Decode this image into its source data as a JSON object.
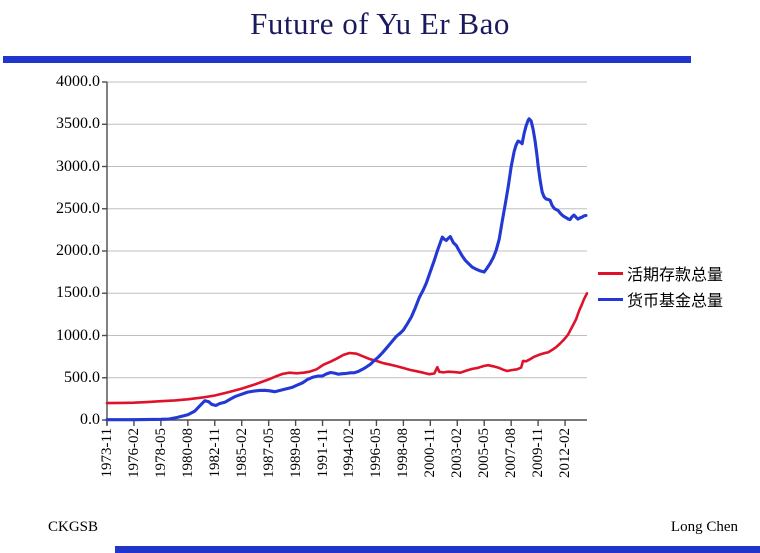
{
  "header": {
    "title": "Future of Yu Er Bao"
  },
  "footer": {
    "left": "CKGSB",
    "right": "Long Chen"
  },
  "colors": {
    "accent_bar": "#1f35cc",
    "title_text": "#1a1a5e",
    "grid": "#bfbfbf",
    "axis": "#4d4d4d",
    "red_series": "#e0112b",
    "blue_series": "#2338d4"
  },
  "chart_data": {
    "type": "line",
    "title": "",
    "xlabel": "",
    "ylabel": "",
    "grid": true,
    "legend_position": "right",
    "ylim": [
      0,
      4000
    ],
    "y_ticks": [
      0,
      500,
      1000,
      1500,
      2000,
      2500,
      3000,
      3500,
      4000
    ],
    "y_tick_labels": [
      "0.0",
      "500.0",
      "1000.0",
      "1500.0",
      "2000.0",
      "2500.0",
      "3000.0",
      "3500.0",
      "4000.0"
    ],
    "x_tick_labels": [
      "1973-11",
      "1976-02",
      "1978-05",
      "1980-08",
      "1982-11",
      "1985-02",
      "1987-05",
      "1989-08",
      "1991-11",
      "1994-02",
      "1996-05",
      "1998-08",
      "2000-11",
      "2003-02",
      "2005-05",
      "2007-08",
      "2009-11",
      "2012-02"
    ],
    "x_tick_months": [
      0,
      27,
      54,
      81,
      108,
      135,
      162,
      189,
      216,
      243,
      270,
      297,
      324,
      351,
      378,
      405,
      432,
      459
    ],
    "x_range_months": [
      0,
      481
    ],
    "series": [
      {
        "name": "活期存款总量",
        "color": "#e0112b",
        "points": [
          [
            0,
            200
          ],
          [
            14,
            202
          ],
          [
            27,
            205
          ],
          [
            40,
            212
          ],
          [
            54,
            222
          ],
          [
            68,
            232
          ],
          [
            81,
            245
          ],
          [
            95,
            265
          ],
          [
            108,
            290
          ],
          [
            122,
            330
          ],
          [
            135,
            372
          ],
          [
            149,
            425
          ],
          [
            162,
            480
          ],
          [
            170,
            520
          ],
          [
            176,
            545
          ],
          [
            183,
            560
          ],
          [
            190,
            553
          ],
          [
            197,
            560
          ],
          [
            203,
            572
          ],
          [
            210,
            600
          ],
          [
            217,
            655
          ],
          [
            224,
            690
          ],
          [
            230,
            725
          ],
          [
            237,
            770
          ],
          [
            243,
            793
          ],
          [
            250,
            785
          ],
          [
            257,
            750
          ],
          [
            263,
            722
          ],
          [
            270,
            700
          ],
          [
            277,
            672
          ],
          [
            284,
            655
          ],
          [
            290,
            638
          ],
          [
            297,
            615
          ],
          [
            304,
            592
          ],
          [
            310,
            578
          ],
          [
            317,
            560
          ],
          [
            323,
            542
          ],
          [
            328,
            550
          ],
          [
            331,
            625
          ],
          [
            333,
            570
          ],
          [
            337,
            563
          ],
          [
            342,
            572
          ],
          [
            348,
            567
          ],
          [
            354,
            560
          ],
          [
            360,
            585
          ],
          [
            366,
            605
          ],
          [
            372,
            618
          ],
          [
            378,
            640
          ],
          [
            382,
            648
          ],
          [
            387,
            635
          ],
          [
            392,
            620
          ],
          [
            397,
            595
          ],
          [
            401,
            580
          ],
          [
            406,
            592
          ],
          [
            411,
            600
          ],
          [
            415,
            620
          ],
          [
            417,
            700
          ],
          [
            420,
            695
          ],
          [
            424,
            720
          ],
          [
            428,
            748
          ],
          [
            433,
            772
          ],
          [
            438,
            790
          ],
          [
            442,
            800
          ],
          [
            446,
            830
          ],
          [
            450,
            862
          ],
          [
            454,
            905
          ],
          [
            458,
            952
          ],
          [
            462,
            1010
          ],
          [
            466,
            1100
          ],
          [
            470,
            1190
          ],
          [
            473,
            1290
          ],
          [
            476,
            1370
          ],
          [
            478,
            1430
          ],
          [
            481,
            1500
          ]
        ]
      },
      {
        "name": "货币基金总量",
        "color": "#2338d4",
        "points": [
          [
            0,
            3
          ],
          [
            27,
            4
          ],
          [
            54,
            8
          ],
          [
            62,
            12
          ],
          [
            70,
            30
          ],
          [
            81,
            62
          ],
          [
            88,
            105
          ],
          [
            94,
            180
          ],
          [
            98,
            228
          ],
          [
            102,
            215
          ],
          [
            105,
            185
          ],
          [
            109,
            172
          ],
          [
            113,
            195
          ],
          [
            118,
            210
          ],
          [
            124,
            250
          ],
          [
            129,
            280
          ],
          [
            135,
            305
          ],
          [
            141,
            330
          ],
          [
            147,
            342
          ],
          [
            153,
            350
          ],
          [
            158,
            352
          ],
          [
            163,
            345
          ],
          [
            168,
            335
          ],
          [
            174,
            352
          ],
          [
            180,
            370
          ],
          [
            186,
            388
          ],
          [
            191,
            415
          ],
          [
            196,
            440
          ],
          [
            201,
            480
          ],
          [
            206,
            505
          ],
          [
            211,
            520
          ],
          [
            216,
            522
          ],
          [
            220,
            545
          ],
          [
            224,
            562
          ],
          [
            228,
            555
          ],
          [
            232,
            542
          ],
          [
            236,
            548
          ],
          [
            240,
            552
          ],
          [
            244,
            558
          ],
          [
            248,
            560
          ],
          [
            252,
            575
          ],
          [
            256,
            600
          ],
          [
            260,
            628
          ],
          [
            264,
            660
          ],
          [
            268,
            705
          ],
          [
            272,
            745
          ],
          [
            276,
            795
          ],
          [
            280,
            850
          ],
          [
            285,
            920
          ],
          [
            290,
            990
          ],
          [
            294,
            1030
          ],
          [
            297,
            1065
          ],
          [
            301,
            1140
          ],
          [
            305,
            1220
          ],
          [
            309,
            1330
          ],
          [
            313,
            1450
          ],
          [
            317,
            1540
          ],
          [
            320,
            1620
          ],
          [
            324,
            1755
          ],
          [
            328,
            1890
          ],
          [
            331,
            2000
          ],
          [
            334,
            2100
          ],
          [
            336,
            2165
          ],
          [
            338,
            2140
          ],
          [
            340,
            2125
          ],
          [
            342,
            2150
          ],
          [
            344,
            2170
          ],
          [
            347,
            2100
          ],
          [
            350,
            2065
          ],
          [
            353,
            2000
          ],
          [
            356,
            1940
          ],
          [
            359,
            1890
          ],
          [
            362,
            1855
          ],
          [
            366,
            1810
          ],
          [
            370,
            1785
          ],
          [
            374,
            1765
          ],
          [
            378,
            1752
          ],
          [
            381,
            1800
          ],
          [
            384,
            1855
          ],
          [
            387,
            1920
          ],
          [
            390,
            2010
          ],
          [
            393,
            2140
          ],
          [
            396,
            2350
          ],
          [
            399,
            2550
          ],
          [
            402,
            2760
          ],
          [
            405,
            3000
          ],
          [
            408,
            3180
          ],
          [
            410,
            3255
          ],
          [
            412,
            3300
          ],
          [
            414,
            3290
          ],
          [
            416,
            3270
          ],
          [
            418,
            3390
          ],
          [
            420,
            3480
          ],
          [
            422,
            3545
          ],
          [
            423,
            3565
          ],
          [
            425,
            3540
          ],
          [
            427,
            3440
          ],
          [
            429,
            3300
          ],
          [
            431,
            3120
          ],
          [
            432,
            3010
          ],
          [
            434,
            2840
          ],
          [
            436,
            2700
          ],
          [
            438,
            2640
          ],
          [
            440,
            2615
          ],
          [
            442,
            2610
          ],
          [
            444,
            2600
          ],
          [
            446,
            2540
          ],
          [
            448,
            2505
          ],
          [
            450,
            2490
          ],
          [
            452,
            2480
          ],
          [
            454,
            2450
          ],
          [
            456,
            2425
          ],
          [
            458,
            2408
          ],
          [
            460,
            2395
          ],
          [
            462,
            2380
          ],
          [
            464,
            2372
          ],
          [
            466,
            2405
          ],
          [
            468,
            2425
          ],
          [
            470,
            2400
          ],
          [
            472,
            2378
          ],
          [
            474,
            2392
          ],
          [
            476,
            2400
          ],
          [
            478,
            2415
          ],
          [
            480,
            2420
          ]
        ]
      }
    ]
  }
}
